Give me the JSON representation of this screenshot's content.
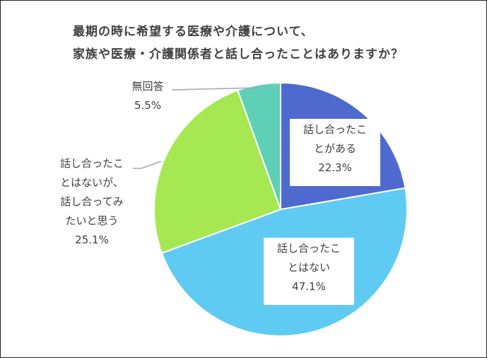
{
  "chart_data": {
    "type": "pie",
    "title_lines": [
      "最期の時に希望する医療や介護について、",
      "家族や医療・介護関係者と話し合ったことはありますか？"
    ],
    "slices": [
      {
        "label_lines": [
          "話し合ったこ",
          "とがある"
        ],
        "value": 22.3,
        "value_label": "22.3%",
        "color": "#4F6ACF"
      },
      {
        "label_lines": [
          "話し合ったこ",
          "とはない"
        ],
        "value": 47.1,
        "value_label": "47.1%",
        "color": "#5FCBF2"
      },
      {
        "label_lines": [
          "話し合ったこ",
          "とはないが、",
          "話し合ってみ",
          "たいと思う"
        ],
        "value": 25.1,
        "value_label": "25.1%",
        "color": "#A6E851"
      },
      {
        "label_lines": [
          "無回答"
        ],
        "value": 5.5,
        "value_label": "5.5%",
        "color": "#5FD0B8"
      }
    ],
    "start_angle_deg": 0,
    "direction": "clockwise"
  }
}
